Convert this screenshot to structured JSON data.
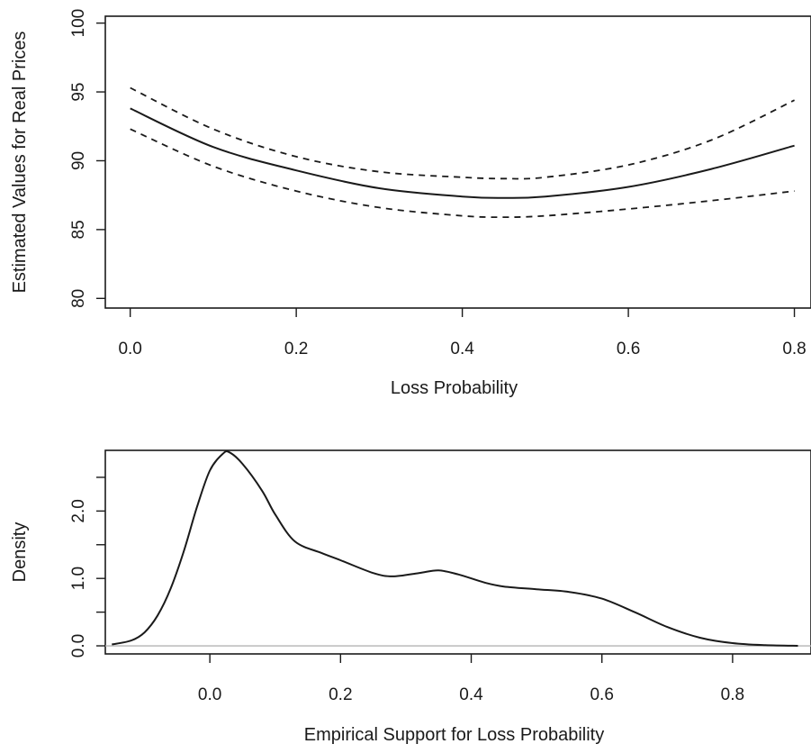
{
  "chart_data": [
    {
      "type": "line",
      "xlabel": "Loss Probability",
      "ylabel": "Estimated Values for Real Prices",
      "xlim": [
        -0.03,
        0.82
      ],
      "ylim": [
        79.3,
        100.5
      ],
      "x_ticks": [
        0.0,
        0.2,
        0.4,
        0.6,
        0.8
      ],
      "x_tick_labels": [
        "0.0",
        "0.2",
        "0.4",
        "0.6",
        "0.8"
      ],
      "y_ticks": [
        80,
        85,
        90,
        95,
        100
      ],
      "y_tick_labels": [
        "80",
        "85",
        "90",
        "95",
        "100"
      ],
      "grid": false,
      "x": [
        0.0,
        0.1,
        0.2,
        0.3,
        0.4,
        0.45,
        0.5,
        0.6,
        0.7,
        0.8
      ],
      "series": [
        {
          "style": "solid",
          "values": [
            93.8,
            91.0,
            89.3,
            88.0,
            87.4,
            87.3,
            87.4,
            88.1,
            89.4,
            91.1
          ]
        },
        {
          "style": "dashed",
          "values": [
            95.3,
            92.3,
            90.3,
            89.2,
            88.8,
            88.7,
            88.8,
            89.7,
            91.5,
            94.4
          ]
        },
        {
          "style": "dashed",
          "values": [
            92.3,
            89.6,
            87.8,
            86.6,
            86.0,
            85.9,
            86.0,
            86.5,
            87.1,
            87.8
          ]
        }
      ]
    },
    {
      "type": "area",
      "xlabel": "Empirical Support for Loss Probability",
      "ylabel": "Density",
      "xlim": [
        -0.16,
        0.92
      ],
      "ylim": [
        -0.12,
        2.9
      ],
      "x_ticks": [
        0.0,
        0.2,
        0.4,
        0.6,
        0.8
      ],
      "x_tick_labels": [
        "0.0",
        "0.2",
        "0.4",
        "0.6",
        "0.8"
      ],
      "y_ticks": [
        0.0,
        0.5,
        1.0,
        1.5,
        2.0,
        2.5
      ],
      "y_tick_labels": [
        "0.0",
        "",
        "1.0",
        "",
        "2.0",
        ""
      ],
      "grid": false,
      "baseline": 0.0,
      "x": [
        -0.15,
        -0.12,
        -0.1,
        -0.08,
        -0.06,
        -0.04,
        -0.02,
        0.0,
        0.02,
        0.03,
        0.05,
        0.08,
        0.1,
        0.13,
        0.17,
        0.2,
        0.25,
        0.28,
        0.32,
        0.35,
        0.38,
        0.42,
        0.45,
        0.5,
        0.55,
        0.6,
        0.65,
        0.7,
        0.75,
        0.8,
        0.85,
        0.9
      ],
      "series": [
        {
          "values": [
            0.02,
            0.08,
            0.2,
            0.45,
            0.85,
            1.4,
            2.05,
            2.6,
            2.85,
            2.87,
            2.7,
            2.3,
            1.95,
            1.55,
            1.38,
            1.27,
            1.08,
            1.03,
            1.08,
            1.12,
            1.06,
            0.94,
            0.88,
            0.84,
            0.8,
            0.7,
            0.5,
            0.28,
            0.12,
            0.04,
            0.01,
            0.0
          ]
        }
      ]
    }
  ]
}
